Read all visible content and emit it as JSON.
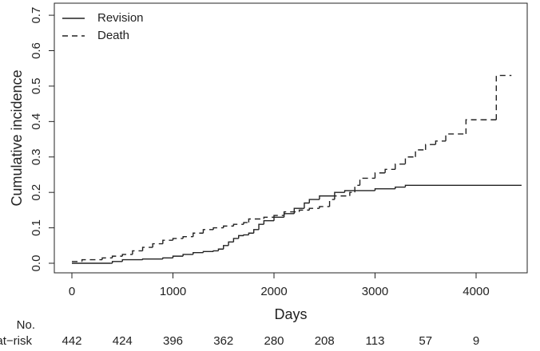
{
  "chart_data": {
    "type": "step",
    "xlabel": "Days",
    "ylabel": "Cumulative incidence",
    "xlim": [
      -174,
      4506
    ],
    "ylim": [
      -0.027,
      0.734
    ],
    "xticks": [
      0,
      1000,
      2000,
      3000,
      4000
    ],
    "yticks": [
      {
        "value": 0,
        "label": "0.0"
      },
      0.1,
      0.2,
      0.3,
      0.4,
      0.5,
      0.6,
      0.7
    ],
    "legend": "top-left",
    "series": [
      {
        "name": "Revision",
        "color": "#222222",
        "dash": "solid",
        "x": [
          0,
          380,
          400,
          500,
          700,
          900,
          1000,
          1100,
          1200,
          1300,
          1400,
          1450,
          1500,
          1550,
          1600,
          1650,
          1700,
          1750,
          1800,
          1850,
          1900,
          2000,
          2100,
          2200,
          2300,
          2350,
          2450,
          2600,
          2700,
          3000,
          3200,
          3300,
          4450
        ],
        "values": [
          0,
          0,
          0.005,
          0.01,
          0.012,
          0.015,
          0.02,
          0.025,
          0.03,
          0.033,
          0.035,
          0.04,
          0.05,
          0.06,
          0.07,
          0.078,
          0.08,
          0.085,
          0.095,
          0.11,
          0.12,
          0.13,
          0.14,
          0.155,
          0.17,
          0.18,
          0.19,
          0.2,
          0.205,
          0.21,
          0.215,
          0.22,
          0.22
        ]
      },
      {
        "name": "Death",
        "color": "#222222",
        "dash": "dashed",
        "x": [
          0,
          100,
          300,
          400,
          500,
          600,
          700,
          800,
          900,
          1000,
          1100,
          1200,
          1300,
          1400,
          1500,
          1600,
          1700,
          1750,
          1900,
          2000,
          2100,
          2250,
          2350,
          2450,
          2550,
          2600,
          2750,
          2800,
          2850,
          3000,
          3100,
          3200,
          3300,
          3400,
          3500,
          3600,
          3700,
          3900,
          4050,
          4200,
          4350
        ],
        "values": [
          0.005,
          0.01,
          0.015,
          0.02,
          0.025,
          0.035,
          0.045,
          0.055,
          0.065,
          0.07,
          0.075,
          0.085,
          0.095,
          0.1,
          0.105,
          0.11,
          0.115,
          0.125,
          0.13,
          0.135,
          0.145,
          0.15,
          0.155,
          0.16,
          0.18,
          0.19,
          0.2,
          0.22,
          0.24,
          0.255,
          0.265,
          0.28,
          0.3,
          0.32,
          0.335,
          0.345,
          0.365,
          0.405,
          0.405,
          0.53,
          0.53
        ]
      }
    ],
    "at_risk": {
      "label": [
        "No.",
        "at−risk"
      ],
      "values": [
        442,
        424,
        396,
        362,
        280,
        208,
        113,
        57,
        9
      ]
    }
  }
}
